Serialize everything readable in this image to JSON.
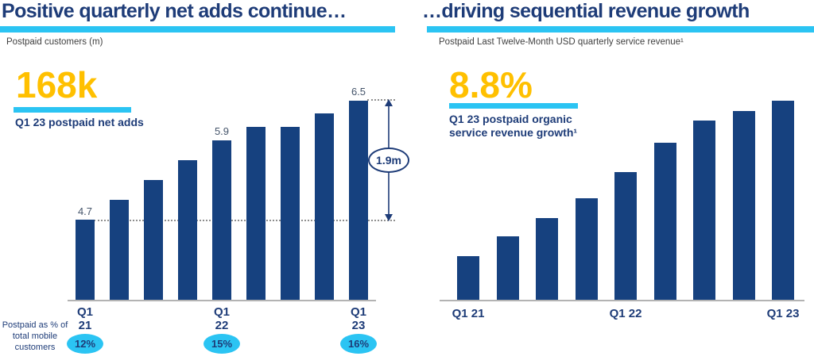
{
  "colors": {
    "navy": "#1e3c78",
    "bar": "#16417f",
    "cyan": "#2bc4f3",
    "gold": "#ffc000",
    "subtitle_gray": "#404040",
    "axis_gray": "#b3b3b3",
    "data_label_gray": "#44546a"
  },
  "left_panel": {
    "title": "Positive quarterly net adds continue…",
    "subtitle": "Postpaid customers (m)",
    "highlight": {
      "value": "168k",
      "caption": "Q1 23 postpaid net adds"
    },
    "xticks": [
      {
        "q": "Q1",
        "yr": "21"
      },
      {
        "q": "Q1",
        "yr": "22"
      },
      {
        "q": "Q1",
        "yr": "23"
      }
    ],
    "pct_row_label": "Postpaid as % of total mobile customers",
    "pct_badges": [
      "12%",
      "15%",
      "16%"
    ],
    "annotation": "1.9m"
  },
  "right_panel": {
    "title": "…driving sequential revenue growth",
    "subtitle": "Postpaid Last Twelve-Month USD quarterly service revenue¹",
    "highlight": {
      "value": "8.8%",
      "caption": "Q1 23 postpaid organic service revenue growth¹"
    },
    "xticks": [
      "Q1 21",
      "Q1 22",
      "Q1 23"
    ]
  },
  "chart_data": [
    {
      "type": "bar",
      "title": "Postpaid customers (m)",
      "categories": [
        "Q1 21",
        "Q2 21",
        "Q3 21",
        "Q4 21",
        "Q1 22",
        "Q2 22",
        "Q3 22",
        "Q4 22",
        "Q1 23"
      ],
      "values": [
        4.7,
        5.0,
        5.3,
        5.6,
        5.9,
        6.1,
        6.1,
        6.3,
        6.5
      ],
      "unit": "millions",
      "shown_data_labels": [
        "4.7",
        "5.9",
        "6.5"
      ],
      "baseline_value": 3.5,
      "ylim": [
        3.5,
        6.8
      ],
      "grid": false,
      "x_axis_ticks_shown": [
        "Q1 21",
        "Q1 22",
        "Q1 23"
      ],
      "annotations": [
        "1.9m"
      ],
      "footnote_badges": {
        "label": "Postpaid as % of total mobile customers",
        "values": {
          "Q1 21": "12%",
          "Q1 22": "15%",
          "Q1 23": "16%"
        }
      }
    },
    {
      "type": "bar",
      "title": "Postpaid Last Twelve-Month USD quarterly service revenue¹",
      "categories": [
        "Q1 21",
        "Q2 21",
        "Q3 21",
        "Q4 21",
        "Q1 22",
        "Q2 22",
        "Q3 22",
        "Q4 22",
        "Q1 23"
      ],
      "values": [
        22,
        32,
        41,
        51,
        64,
        79,
        90,
        95,
        100
      ],
      "unit": "relative bar height, % of Q1 23 bar (no numeric labels shown)",
      "grid": false,
      "x_axis_ticks_shown": [
        "Q1 21",
        "Q1 22",
        "Q1 23"
      ],
      "annotations": [
        "8.8%"
      ]
    }
  ]
}
